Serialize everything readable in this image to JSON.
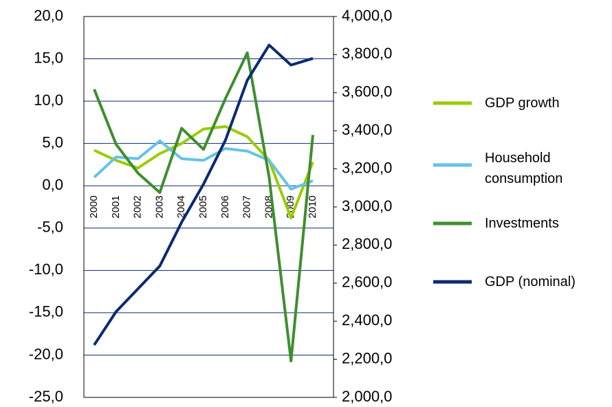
{
  "chart_data": {
    "type": "line",
    "categories": [
      "2000",
      "2001",
      "2002",
      "2003",
      "2004",
      "2005",
      "2006",
      "2007",
      "2008",
      "2009",
      "2010"
    ],
    "series": [
      {
        "name": "GDP growth",
        "color": "#99cc00",
        "values": [
          4.2,
          3.0,
          2.1,
          3.8,
          5.0,
          6.7,
          7.0,
          5.8,
          3.0,
          -3.8,
          2.8
        ]
      },
      {
        "name": "Household consumption",
        "color": "#66c2e6",
        "values": [
          1.0,
          3.4,
          3.2,
          5.3,
          3.2,
          3.0,
          4.4,
          4.1,
          3.0,
          -0.4,
          0.6
        ]
      },
      {
        "name": "Investments",
        "color": "#3d8f2e",
        "values": [
          11.4,
          4.9,
          1.5,
          -0.8,
          6.8,
          4.3,
          10.3,
          15.7,
          1.0,
          -20.7,
          6.0
        ]
      },
      {
        "name": "GDP (nominal)",
        "color": "#0b2a70",
        "axis": "y2",
        "values": [
          2275,
          2450,
          2570,
          2690,
          2920,
          3120,
          3350,
          3665,
          3850,
          3745,
          3780
        ]
      }
    ],
    "ylim": [
      -25,
      20
    ],
    "yticks": [
      {
        "value": -25,
        "label": "-25,0"
      },
      {
        "value": -20,
        "label": "-20,0"
      },
      {
        "value": -15,
        "label": "-15,0"
      },
      {
        "value": -10,
        "label": "-10,0"
      },
      {
        "value": -5,
        "label": "-5,0"
      },
      {
        "value": 0,
        "label": "0,0"
      },
      {
        "value": 5,
        "label": "5,0"
      },
      {
        "value": 10,
        "label": "10,0"
      },
      {
        "value": 15,
        "label": "15,0"
      },
      {
        "value": 20,
        "label": "20,0"
      }
    ],
    "y2lim": [
      2000,
      4000
    ],
    "y2ticks": [
      {
        "value": 2000,
        "label": "2,000,0"
      },
      {
        "value": 2200,
        "label": "2,200,0"
      },
      {
        "value": 2400,
        "label": "2,400,0"
      },
      {
        "value": 2600,
        "label": "2,600,0"
      },
      {
        "value": 2800,
        "label": "2,800,0"
      },
      {
        "value": 3000,
        "label": "3,000,0"
      },
      {
        "value": 3200,
        "label": "3,200,0"
      },
      {
        "value": 3400,
        "label": "3,400,0"
      },
      {
        "value": 3600,
        "label": "3,600,0"
      },
      {
        "value": 3800,
        "label": "3,800,0"
      },
      {
        "value": 4000,
        "label": "4,000,0"
      }
    ],
    "grid": true
  }
}
